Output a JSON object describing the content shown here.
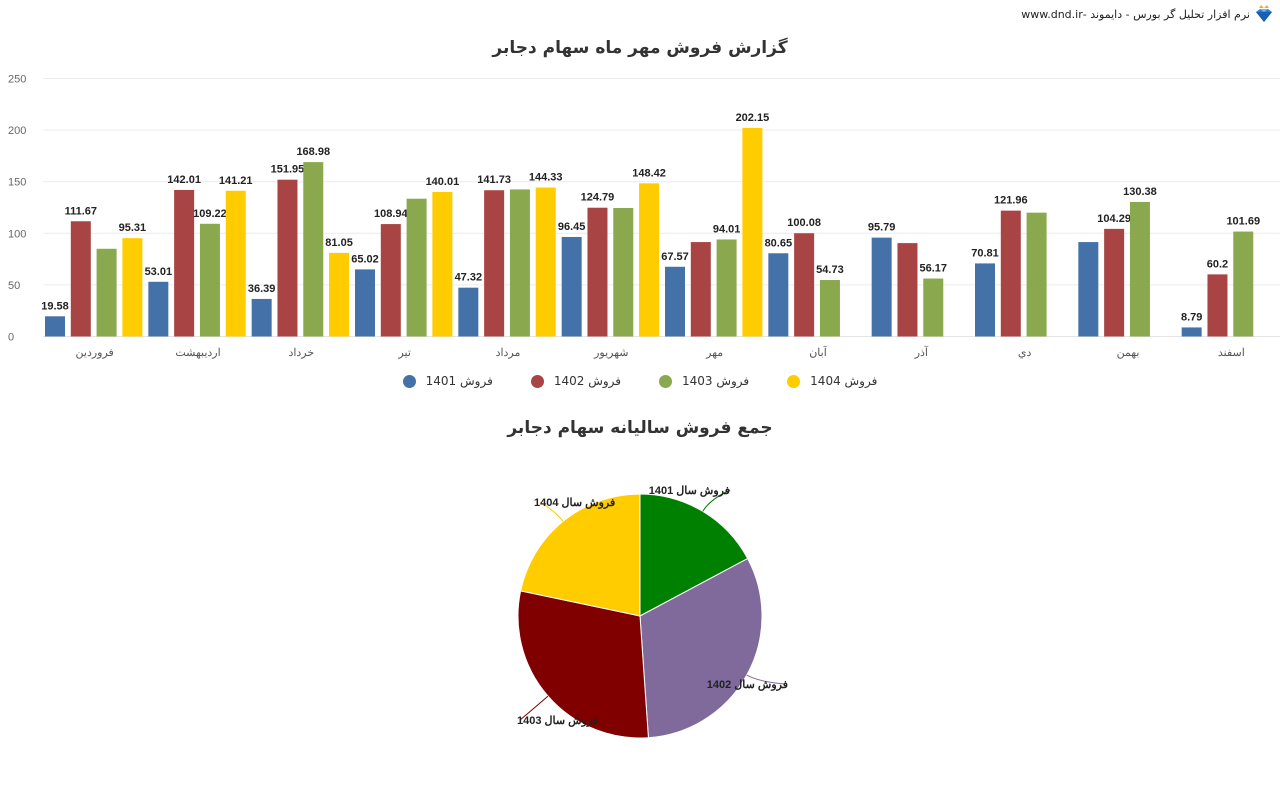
{
  "header": {
    "brand_text": "نرم افزار تحلیل گر بورس - دایموند -www.dnd.ir",
    "logo_icon": "diamond-crown-icon"
  },
  "chart_data": [
    {
      "type": "bar",
      "title": "گزارش فروش مهر ماه سهام دجابر",
      "xlabel": "",
      "ylabel": "",
      "ylim": [
        0,
        250
      ],
      "yticks": [
        0,
        50,
        100,
        150,
        200,
        250
      ],
      "grid": true,
      "legend_position": "bottom",
      "categories": [
        "فروردین",
        "اردیبهشت",
        "خرداد",
        "تیر",
        "مرداد",
        "شهریور",
        "مهر",
        "آبان",
        "آذر",
        "دي",
        "بهمن",
        "اسفند"
      ],
      "series": [
        {
          "name": "فروش 1401",
          "color": "#4472a8",
          "values": [
            19.58,
            53.01,
            36.39,
            65.02,
            47.32,
            96.45,
            67.57,
            80.65,
            95.79,
            70.81,
            91.5,
            8.79
          ],
          "labels": [
            "19.58",
            "53.01",
            "36.39",
            "65.02",
            "47.32",
            "96.45",
            "67.57",
            "80.65",
            "95.79",
            "70.81",
            "",
            "8.79"
          ]
        },
        {
          "name": "فروش 1402",
          "color": "#a94444",
          "values": [
            111.67,
            142.01,
            151.95,
            108.94,
            141.73,
            124.79,
            91.5,
            100.08,
            90.5,
            121.96,
            104.29,
            60.2
          ],
          "labels": [
            "111.67",
            "142.01",
            "151.95",
            "108.94",
            "141.73",
            "124.79",
            "",
            "100.08",
            "",
            "121.96",
            "104.29",
            "60.2"
          ]
        },
        {
          "name": "فروش 1403",
          "color": "#8aa84e",
          "values": [
            85.0,
            109.22,
            168.98,
            133.5,
            142.5,
            124.5,
            94.01,
            54.73,
            56.17,
            120.0,
            130.38,
            101.69
          ],
          "labels": [
            "",
            "109.22",
            "168.98",
            "",
            "",
            "",
            "94.01",
            "54.73",
            "56.17",
            "",
            "130.38",
            "101.69"
          ]
        },
        {
          "name": "فروش 1404",
          "color": "#ffcc00",
          "values": [
            95.31,
            141.21,
            81.05,
            140.01,
            144.33,
            148.42,
            202.15,
            null,
            null,
            null,
            null,
            null
          ],
          "labels": [
            "95.31",
            "141.21",
            "81.05",
            "140.01",
            "144.33",
            "148.42",
            "202.15",
            "",
            "",
            "",
            "",
            ""
          ]
        }
      ]
    },
    {
      "type": "pie",
      "title": "جمع فروش سالیانه سهام دجابر",
      "slices": [
        {
          "label": "فروش سال 1401",
          "value": 17.2,
          "color": "#008000"
        },
        {
          "label": "فروش سال 1402",
          "value": 31.7,
          "color": "#806a9c"
        },
        {
          "label": "فروش سال 1403",
          "value": 29.4,
          "color": "#800000"
        },
        {
          "label": "فروش سال 1404",
          "value": 21.7,
          "color": "#ffcc00"
        }
      ]
    }
  ]
}
